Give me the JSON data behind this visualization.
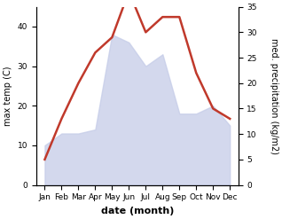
{
  "months": [
    "Jan",
    "Feb",
    "Mar",
    "Apr",
    "May",
    "Jun",
    "Jul",
    "Aug",
    "Sep",
    "Oct",
    "Nov",
    "Dec"
  ],
  "max_temp": [
    10,
    13,
    13,
    14,
    38,
    36,
    30,
    33,
    18,
    18,
    20,
    15
  ],
  "precipitation": [
    5,
    13,
    20,
    26,
    29,
    38,
    30,
    33,
    33,
    22,
    15,
    13
  ],
  "precip_color": "#c0392b",
  "temp_fill_color": "#c5cce8",
  "temp_fill_alpha": 0.75,
  "ylabel_left": "max temp (C)",
  "ylabel_right": "med. precipitation (kg/m2)",
  "xlabel": "date (month)",
  "ylim_left": [
    0,
    45
  ],
  "ylim_right": [
    0,
    35
  ],
  "yticks_left": [
    0,
    10,
    20,
    30,
    40
  ],
  "yticks_right": [
    0,
    5,
    10,
    15,
    20,
    25,
    30,
    35
  ],
  "background_color": "#ffffff",
  "tick_fontsize": 6.5,
  "label_fontsize": 7,
  "xlabel_fontsize": 8
}
